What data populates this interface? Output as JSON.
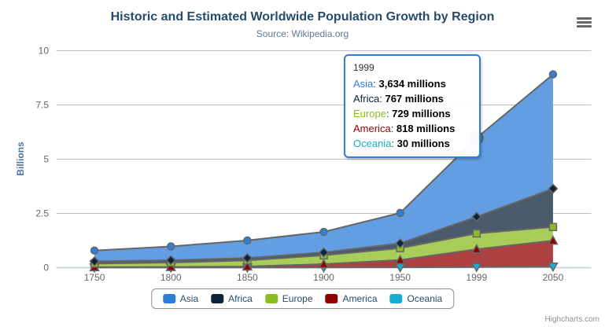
{
  "header": {
    "title": "Historic and Estimated Worldwide Population Growth by Region",
    "subtitle": "Source: Wikipedia.org"
  },
  "export_menu": {
    "icon": "hamburger-icon"
  },
  "credits": "Highcharts.com",
  "tooltip": {
    "header": "1999",
    "border_color": "#2f7ed8",
    "rows": [
      {
        "name": "Asia",
        "value": "3,634 millions",
        "color": "#2f7ed8"
      },
      {
        "name": "Africa",
        "value": "767 millions",
        "color": "#0d233a"
      },
      {
        "name": "Europe",
        "value": "729 millions",
        "color": "#8bbc21"
      },
      {
        "name": "America",
        "value": "818 millions",
        "color": "#910000"
      },
      {
        "name": "Oceania",
        "value": "30 millions",
        "color": "#1aadce"
      }
    ]
  },
  "chart_data": {
    "type": "area",
    "stacking": "normal",
    "title": "Historic and Estimated Worldwide Population Growth by Region",
    "subtitle": "Source: Wikipedia.org",
    "xlabel": "",
    "ylabel": "Billions",
    "values_unit": "millions",
    "ylim": [
      0,
      10
    ],
    "yticks": [
      0,
      2.5,
      5,
      7.5,
      10
    ],
    "grid": true,
    "legend_position": "bottom",
    "categories": [
      "1750",
      "1800",
      "1850",
      "1900",
      "1950",
      "1999",
      "2050"
    ],
    "series": [
      {
        "name": "Asia",
        "color": "#2f7ed8",
        "marker": "circle",
        "values": [
          502,
          635,
          809,
          947,
          1402,
          3634,
          5268
        ]
      },
      {
        "name": "Africa",
        "color": "#0d233a",
        "marker": "diamond",
        "values": [
          106,
          107,
          111,
          133,
          221,
          767,
          1766
        ]
      },
      {
        "name": "Europe",
        "color": "#8bbc21",
        "marker": "square",
        "values": [
          163,
          203,
          276,
          408,
          547,
          729,
          628
        ]
      },
      {
        "name": "America",
        "color": "#910000",
        "marker": "triangle",
        "values": [
          18,
          31,
          54,
          156,
          339,
          818,
          1201
        ]
      },
      {
        "name": "Oceania",
        "color": "#1aadce",
        "marker": "triangle-down",
        "values": [
          2,
          2,
          2,
          6,
          13,
          30,
          46
        ]
      }
    ],
    "hover": {
      "series": "Asia",
      "category": "1999"
    },
    "style": {
      "line_color": "#666666",
      "grid_color": "#C0C0C0",
      "axis_line_color": "#C0D0E0",
      "tick_label_color": "#666666",
      "axis_title_color": "#4d759e",
      "fill_opacity": 0.75
    }
  }
}
